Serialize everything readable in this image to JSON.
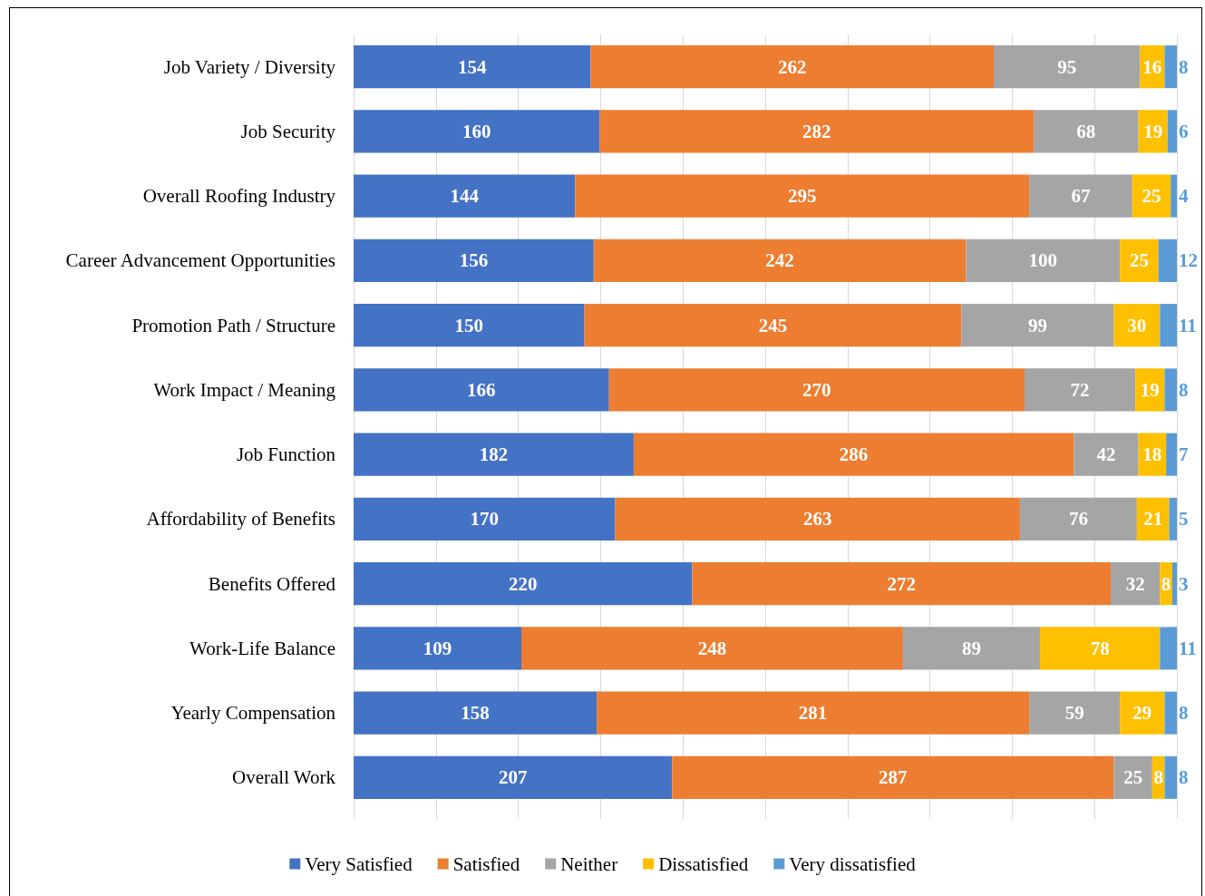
{
  "chart_data": {
    "type": "bar",
    "orientation": "horizontal",
    "stacked": true,
    "data_labels": true,
    "grid": "x",
    "legend": "bottom",
    "tick_labels": "y",
    "categories": [
      "Job Variety / Diversity",
      "Job Security",
      "Overall Roofing Industry",
      "Career Advancement Opportunities",
      "Promotion Path / Structure",
      "Work Impact / Meaning",
      "Job Function",
      "Affordability of Benefits",
      "Benefits Offered",
      "Work-Life Balance",
      "Yearly Compensation",
      "Overall Work"
    ],
    "xlim": [
      0,
      535
    ],
    "xticks": [
      {
        "value": 0,
        "label": null
      },
      {
        "value": 53.5,
        "label": null
      },
      {
        "value": 107,
        "label": null
      },
      {
        "value": 160.5,
        "label": null
      },
      {
        "value": 214,
        "label": null
      },
      {
        "value": 267.5,
        "label": null
      },
      {
        "value": 321,
        "label": null
      },
      {
        "value": 374.5,
        "label": null
      },
      {
        "value": 428,
        "label": null
      },
      {
        "value": 481.5,
        "label": null
      },
      {
        "value": 535,
        "label": null
      }
    ],
    "series": [
      {
        "name": "Very Satisfied",
        "color": "#4472c4",
        "values": [
          154,
          160,
          144,
          156,
          150,
          166,
          182,
          170,
          220,
          109,
          158,
          207
        ]
      },
      {
        "name": "Satisfied",
        "color": "#ed7d31",
        "values": [
          262,
          282,
          295,
          242,
          245,
          270,
          286,
          263,
          272,
          248,
          281,
          287
        ]
      },
      {
        "name": "Neither",
        "color": "#a5a5a5",
        "values": [
          95,
          68,
          67,
          100,
          99,
          72,
          42,
          76,
          32,
          89,
          59,
          25
        ]
      },
      {
        "name": "Dissatisfied",
        "color": "#ffc000",
        "values": [
          16,
          19,
          25,
          25,
          30,
          19,
          18,
          21,
          8,
          78,
          29,
          8
        ]
      },
      {
        "name": "Very dissatisfied",
        "color": "#5b9bd5",
        "values": [
          8,
          6,
          4,
          12,
          11,
          8,
          7,
          5,
          3,
          11,
          8,
          8
        ]
      }
    ]
  }
}
